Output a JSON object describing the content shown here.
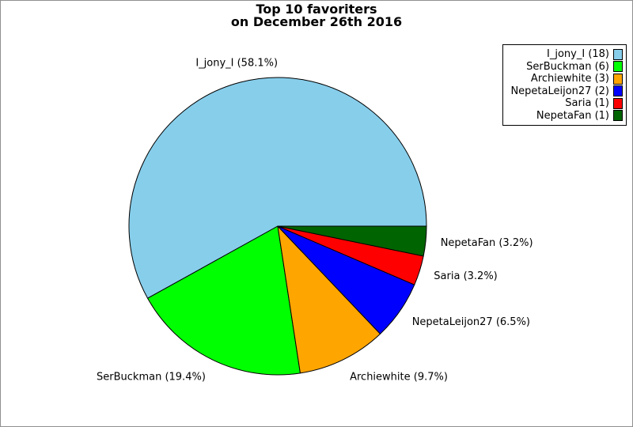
{
  "page": {
    "background_color": "#ffffff",
    "border_color": "#909090"
  },
  "chart_data": {
    "type": "pie",
    "title": "Top 10 favoriters",
    "subtitle": "on December 26th 2016",
    "total_count": 31,
    "start_angle_deg": 0,
    "direction": "counterclockwise",
    "edge_color": "#000000",
    "legend_position": "top-right",
    "slices": [
      {
        "label": "I_jony_I",
        "count": 18,
        "percent": 58.1,
        "callout_label": "I_jony_I (58.1%)",
        "legend_label": "I_jony_I (18)",
        "color": "#87CEEB"
      },
      {
        "label": "SerBuckman",
        "count": 6,
        "percent": 19.4,
        "callout_label": "SerBuckman (19.4%)",
        "legend_label": "SerBuckman (6)",
        "color": "#00FF00"
      },
      {
        "label": "Archiewhite",
        "count": 3,
        "percent": 9.7,
        "callout_label": "Archiewhite (9.7%)",
        "legend_label": "Archiewhite (3)",
        "color": "#FFA500"
      },
      {
        "label": "NepetaLeijon27",
        "count": 2,
        "percent": 6.5,
        "callout_label": "NepetaLeijon27 (6.5%)",
        "legend_label": "NepetaLeijon27 (2)",
        "color": "#0000FF"
      },
      {
        "label": "Saria",
        "count": 1,
        "percent": 3.2,
        "callout_label": "Saria (3.2%)",
        "legend_label": "Saria (1)",
        "color": "#FF0000"
      },
      {
        "label": "NepetaFan",
        "count": 1,
        "percent": 3.2,
        "callout_label": "NepetaFan (3.2%)",
        "legend_label": "NepetaFan (1)",
        "color": "#006400"
      }
    ]
  }
}
